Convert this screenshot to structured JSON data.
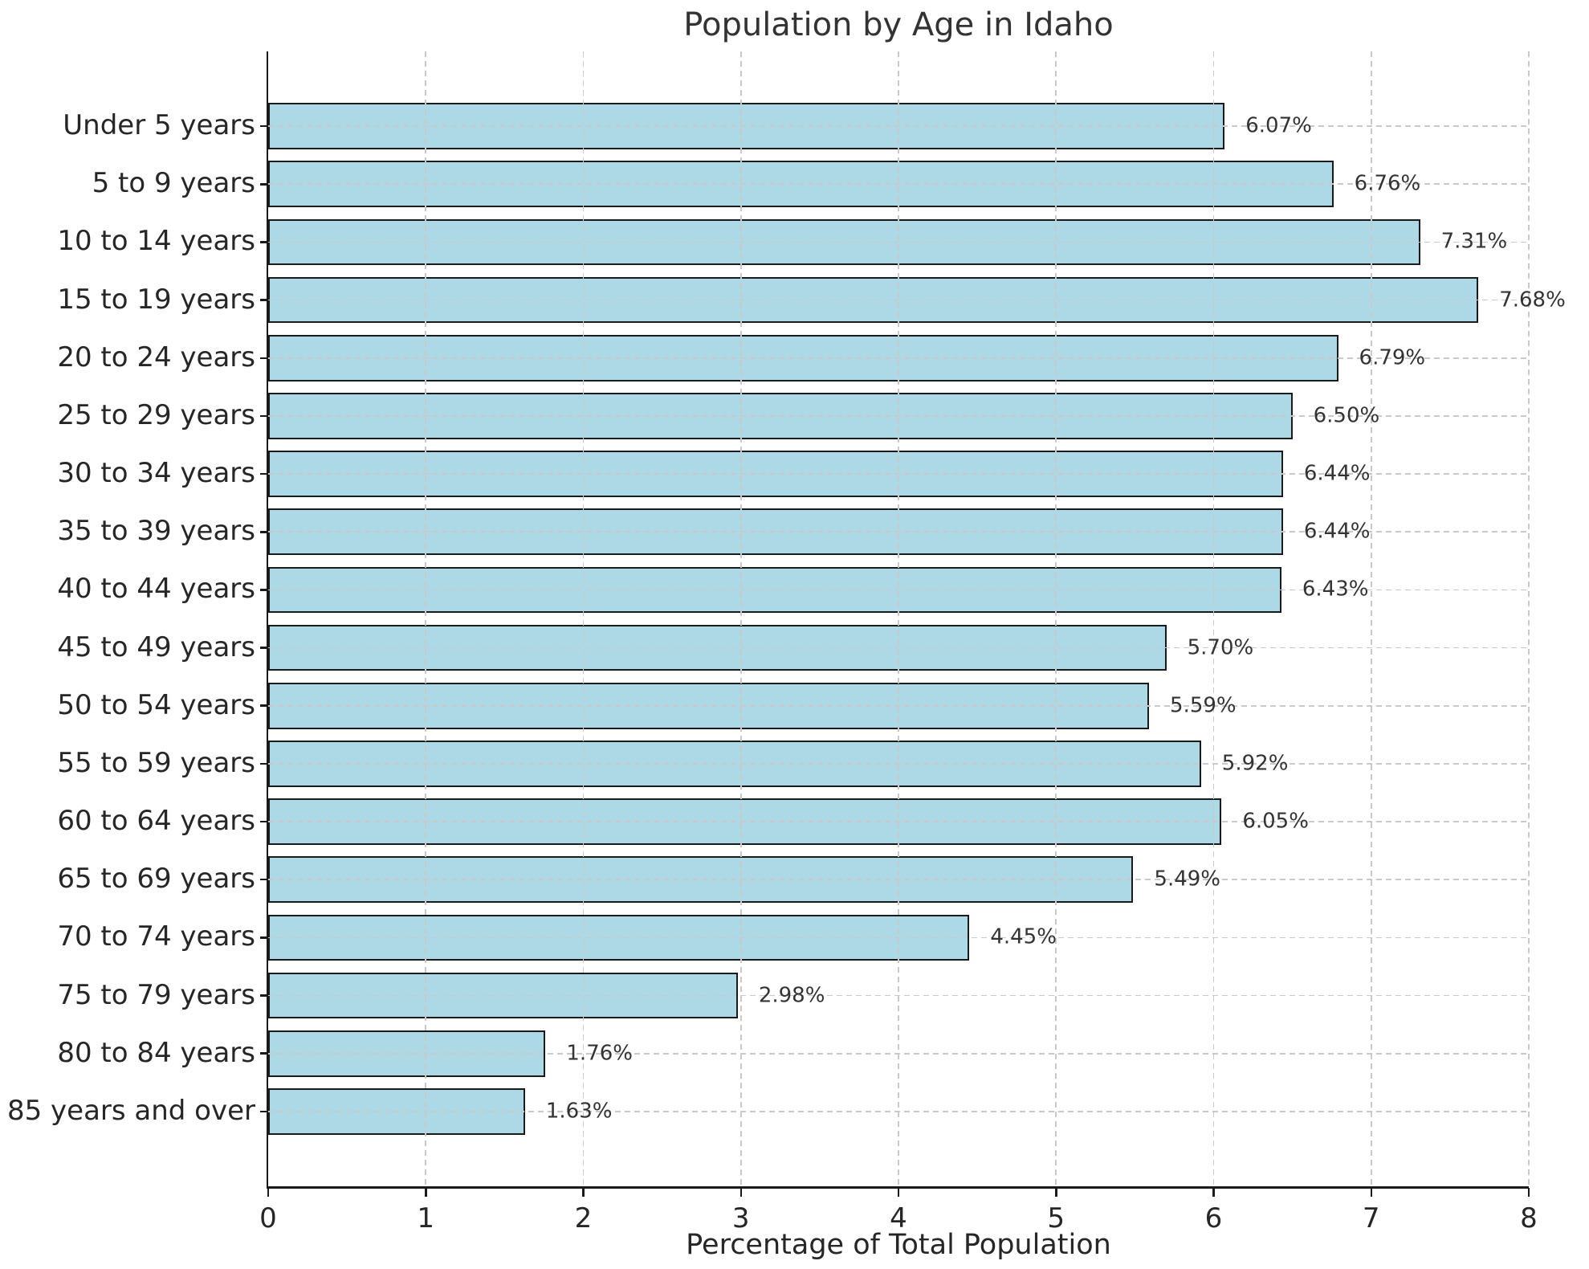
{
  "chart_data": {
    "type": "bar",
    "orientation": "horizontal",
    "title": "Population by Age in Idaho",
    "xlabel": "Percentage of Total Population",
    "ylabel": "",
    "categories": [
      "Under 5 years",
      "5 to 9 years",
      "10 to 14 years",
      "15 to 19 years",
      "20 to 24 years",
      "25 to 29 years",
      "30 to 34 years",
      "35 to 39 years",
      "40 to 44 years",
      "45 to 49 years",
      "50 to 54 years",
      "55 to 59 years",
      "60 to 64 years",
      "65 to 69 years",
      "70 to 74 years",
      "75 to 79 years",
      "80 to 84 years",
      "85 years and over"
    ],
    "values": [
      6.07,
      6.76,
      7.31,
      7.68,
      6.79,
      6.5,
      6.44,
      6.44,
      6.43,
      5.7,
      5.59,
      5.92,
      6.05,
      5.49,
      4.45,
      2.98,
      1.76,
      1.63
    ],
    "value_labels": [
      "6.07%",
      "6.76%",
      "7.31%",
      "7.68%",
      "6.79%",
      "6.50%",
      "6.44%",
      "6.44%",
      "6.43%",
      "5.70%",
      "5.59%",
      "5.92%",
      "6.05%",
      "5.49%",
      "4.45%",
      "2.98%",
      "1.76%",
      "1.63%"
    ],
    "xlim": [
      0,
      8
    ],
    "xticks": [
      0,
      1,
      2,
      3,
      4,
      5,
      6,
      7,
      8
    ],
    "grid": true,
    "grid_style": "dashed",
    "legend": "none",
    "bar_color": "#ADD8E6",
    "bar_edge_color": "#1a1a1a",
    "grid_color": "#c9c9c9",
    "text_color": "#262626"
  }
}
